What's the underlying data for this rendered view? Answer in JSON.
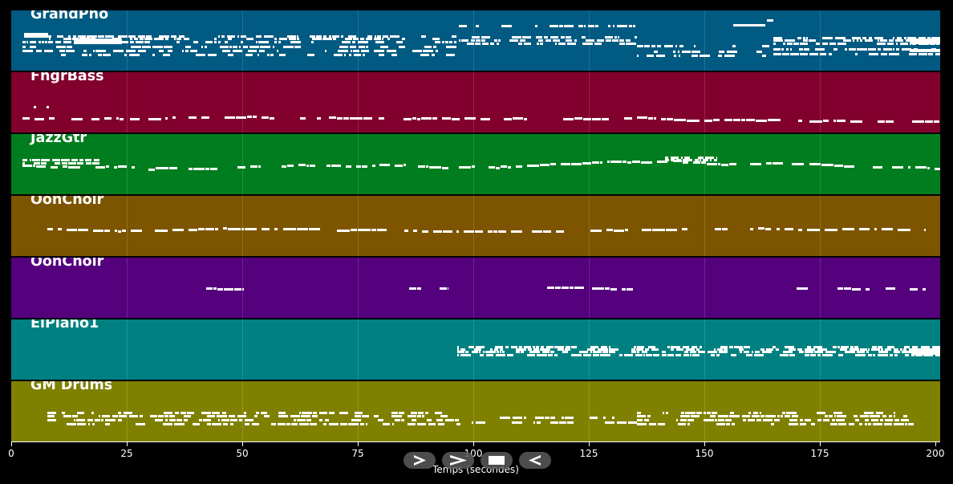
{
  "xaxis": {
    "label": "Temps (secondes)",
    "ticks": [
      "0",
      "25",
      "50",
      "75",
      "100",
      "125",
      "150",
      "175",
      "200"
    ]
  },
  "controls": [
    {
      "name": "play-button",
      "icon": "play-icon"
    },
    {
      "name": "forward-button",
      "icon": "fast-forward-icon"
    },
    {
      "name": "stop-button",
      "icon": "stop-icon"
    },
    {
      "name": "rewind-button",
      "icon": "rewind-icon"
    }
  ],
  "tracks": [
    {
      "name": "GrandPno",
      "color": "#005a82"
    },
    {
      "name": "FngrBass",
      "color": "#82002d"
    },
    {
      "name": "JazzGtr",
      "color": "#007d1e"
    },
    {
      "name": "OohChoir",
      "color": "#7d5500"
    },
    {
      "name": "OohChoir",
      "color": "#55007d"
    },
    {
      "name": "ElPiano1",
      "color": "#008080"
    },
    {
      "name": "GM Drums",
      "color": "#808000"
    }
  ]
}
